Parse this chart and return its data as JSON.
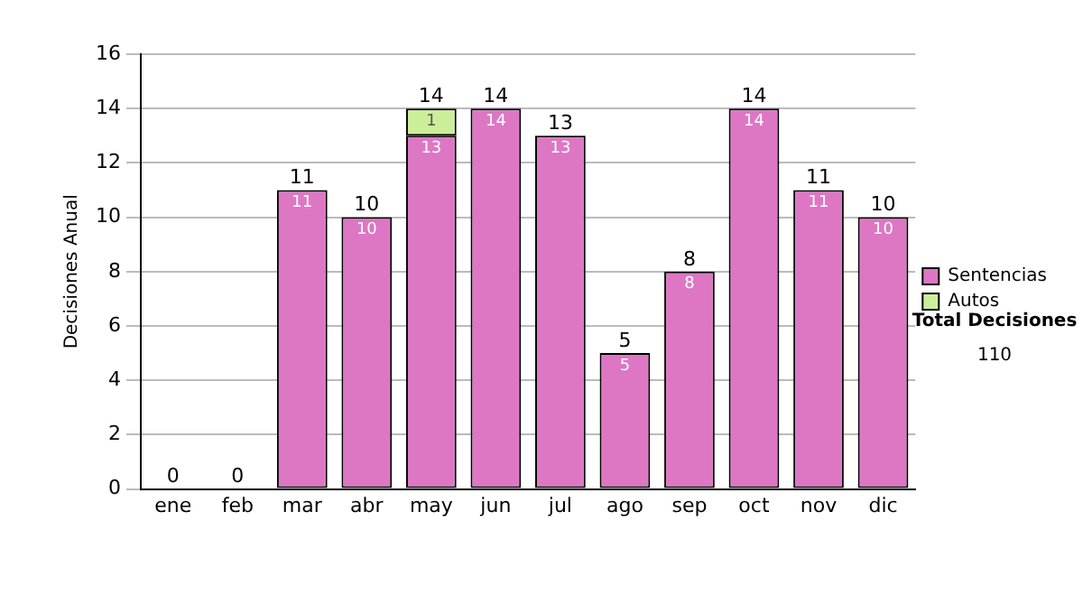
{
  "chart_data": {
    "type": "bar",
    "stacked": true,
    "ylabel": "Decisiones Anual",
    "categories": [
      "ene",
      "feb",
      "mar",
      "abr",
      "may",
      "jun",
      "jul",
      "ago",
      "sep",
      "oct",
      "nov",
      "dic"
    ],
    "series": [
      {
        "name": "Sentencias",
        "color": "#dd77c4",
        "values": [
          0,
          0,
          11,
          10,
          13,
          14,
          13,
          5,
          8,
          14,
          11,
          10
        ],
        "value_labels": [
          null,
          null,
          "11",
          "10",
          "13",
          "14",
          "13",
          "5",
          "8",
          "14",
          "11",
          "10"
        ]
      },
      {
        "name": "Autos",
        "color": "#ccee99",
        "values": [
          0,
          0,
          0,
          0,
          1,
          0,
          0,
          0,
          0,
          0,
          0,
          0
        ],
        "value_labels": [
          null,
          null,
          null,
          null,
          "1",
          null,
          null,
          null,
          null,
          null,
          null,
          null
        ]
      }
    ],
    "totals": [
      "0",
      "0",
      "11",
      "10",
      "14",
      "14",
      "13",
      "5",
      "8",
      "14",
      "11",
      "10"
    ],
    "ylim": [
      0,
      16
    ],
    "yticks": [
      0,
      2,
      4,
      6,
      8,
      10,
      12,
      14,
      16
    ],
    "grid": "y",
    "legend": "right",
    "annotations": [
      "Total Decisiones",
      "110"
    ]
  }
}
